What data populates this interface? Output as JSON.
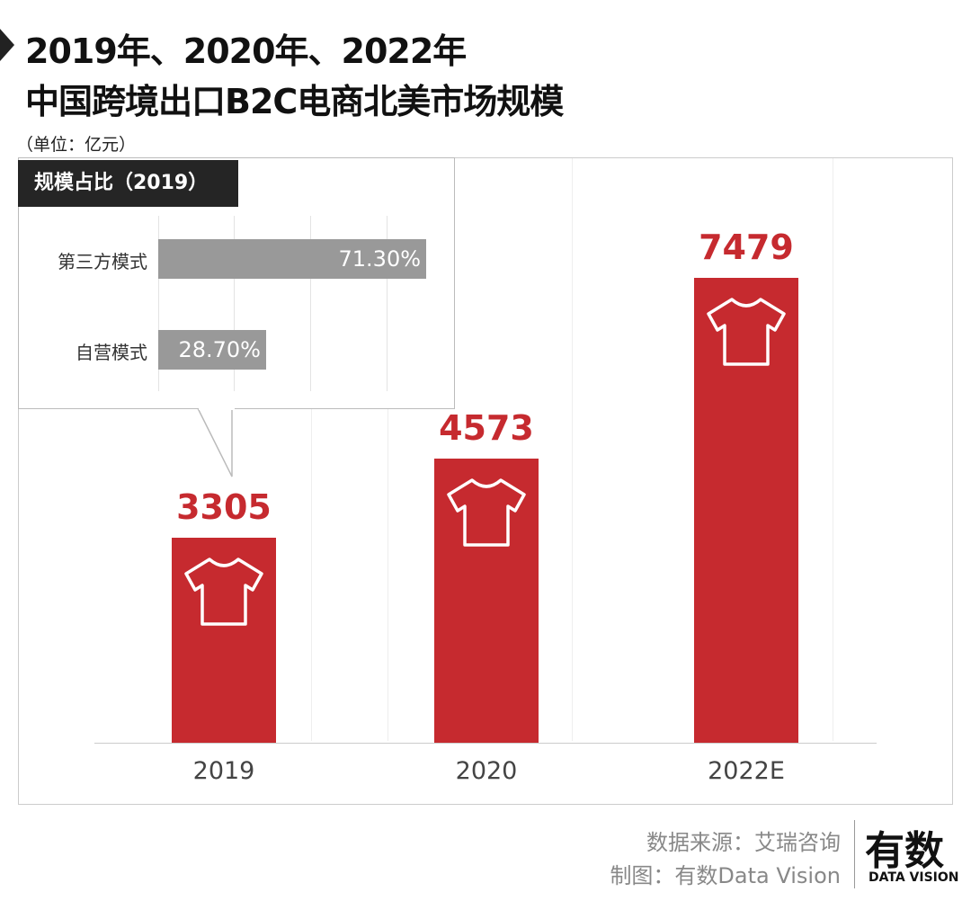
{
  "title": {
    "line1": "2019年、2020年、2022年",
    "line2": "中国跨境出口B2C电商北美市场规模",
    "unit": "（单位：亿元）"
  },
  "chart_data": {
    "type": "bar",
    "title": "2019年、2020年、2022年中国跨境出口B2C电商北美市场规模",
    "ylabel": "亿元",
    "categories": [
      "2019",
      "2020",
      "2022E"
    ],
    "values": [
      3305,
      4573,
      7479
    ],
    "ylim": [
      0,
      7479
    ],
    "bar_color": "#c62a2f",
    "inset": {
      "type": "bar",
      "orientation": "horizontal",
      "title": "规模占比（2019）",
      "categories": [
        "第三方模式",
        "自营模式"
      ],
      "values": [
        71.3,
        28.7
      ],
      "labels": [
        "71.30%",
        "28.70%"
      ],
      "xlim": [
        0,
        100
      ]
    }
  },
  "footer": {
    "source": "数据来源：艾瑞咨询",
    "credit": "制图：有数Data Vision",
    "logo_text": "有数",
    "logo_sub": "DATA VISION"
  }
}
